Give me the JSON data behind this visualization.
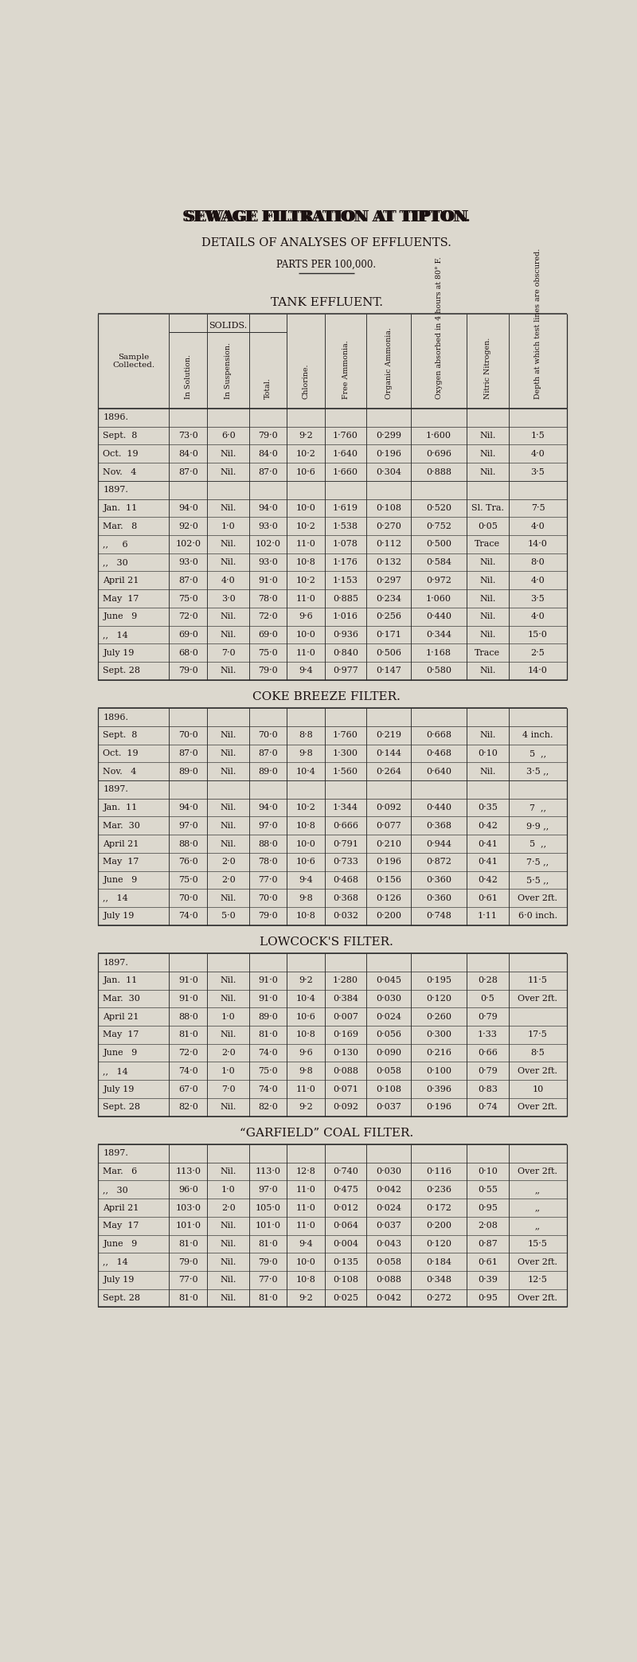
{
  "title1": "SEWAGE FILTRATION AT TIPTON.",
  "title2": "DETAILS OF ANALYSES OF EFFLUENTS.",
  "title3": "PARTS PER 100,000.",
  "bg_color": "#dcd8ce",
  "sections": [
    {
      "title": "TANK EFFLUENT.",
      "has_header": true,
      "year_groups": [
        {
          "year": "1896.",
          "rows": [
            [
              "Sept.  8",
              "73·0",
              "6·0",
              "79·0",
              "9·2",
              "1·760",
              "0·299",
              "1·600",
              "Nil.",
              "1·5"
            ],
            [
              "Oct.  19",
              "84·0",
              "Nil.",
              "84·0",
              "10·2",
              "1·640",
              "0·196",
              "0·696",
              "Nil.",
              "4·0"
            ],
            [
              "Nov.   4",
              "87·0",
              "Nil.",
              "87·0",
              "10·6",
              "1·660",
              "0·304",
              "0·888",
              "Nil.",
              "3·5"
            ]
          ]
        },
        {
          "year": "1897.",
          "rows": [
            [
              "Jan.  11",
              "94·0",
              "Nil.",
              "94·0",
              "10·0",
              "1·619",
              "0·108",
              "0·520",
              "Sl. Tra.",
              "7·5"
            ],
            [
              "Mar.   8",
              "92·0",
              "1·0",
              "93·0",
              "10·2",
              "1·538",
              "0·270",
              "0·752",
              "0·05",
              "4·0"
            ],
            [
              ",,     6",
              "102·0",
              "Nil.",
              "102·0",
              "11·0",
              "1·078",
              "0·112",
              "0·500",
              "Trace",
              "14·0"
            ],
            [
              ",,   30",
              "93·0",
              "Nil.",
              "93·0",
              "10·8",
              "1·176",
              "0·132",
              "0·584",
              "Nil.",
              "8·0"
            ],
            [
              "April 21",
              "87·0",
              "4·0",
              "91·0",
              "10·2",
              "1·153",
              "0·297",
              "0·972",
              "Nil.",
              "4·0"
            ],
            [
              "May  17",
              "75·0",
              "3·0",
              "78·0",
              "11·0",
              "0·885",
              "0·234",
              "1·060",
              "Nil.",
              "3·5"
            ],
            [
              "June   9",
              "72·0",
              "Nil.",
              "72·0",
              "9·6",
              "1·016",
              "0·256",
              "0·440",
              "Nil.",
              "4·0"
            ],
            [
              ",,   14",
              "69·0",
              "Nil.",
              "69·0",
              "10·0",
              "0·936",
              "0·171",
              "0·344",
              "Nil.",
              "15·0"
            ],
            [
              "July 19",
              "68·0",
              "7·0",
              "75·0",
              "11·0",
              "0·840",
              "0·506",
              "1·168",
              "Trace",
              "2·5"
            ],
            [
              "Sept. 28",
              "79·0",
              "Nil.",
              "79·0",
              "9·4",
              "0·977",
              "0·147",
              "0·580",
              "Nil.",
              "14·0"
            ]
          ]
        }
      ]
    },
    {
      "title": "COKE BREEZE FILTER.",
      "has_header": false,
      "year_groups": [
        {
          "year": "1896.",
          "rows": [
            [
              "Sept.  8",
              "70·0",
              "Nil.",
              "70·0",
              "8·8",
              "1·760",
              "0·219",
              "0·668",
              "Nil.",
              "4 inch."
            ],
            [
              "Oct.  19",
              "87·0",
              "Nil.",
              "87·0",
              "9·8",
              "1·300",
              "0·144",
              "0·468",
              "0·10",
              "5  ,,"
            ],
            [
              "Nov.   4",
              "89·0",
              "Nil.",
              "89·0",
              "10·4",
              "1·560",
              "0·264",
              "0·640",
              "Nil.",
              "3·5 ,,"
            ]
          ]
        },
        {
          "year": "1897.",
          "rows": [
            [
              "Jan.  11",
              "94·0",
              "Nil.",
              "94·0",
              "10·2",
              "1·344",
              "0·092",
              "0·440",
              "0·35",
              "7  ,,"
            ],
            [
              "Mar.  30",
              "97·0",
              "Nil.",
              "97·0",
              "10·8",
              "0·666",
              "0·077",
              "0·368",
              "0·42",
              "9·9 ,,"
            ],
            [
              "April 21",
              "88·0",
              "Nil.",
              "88·0",
              "10·0",
              "0·791",
              "0·210",
              "0·944",
              "0·41",
              "5  ,,"
            ],
            [
              "May  17",
              "76·0",
              "2·0",
              "78·0",
              "10·6",
              "0·733",
              "0·196",
              "0·872",
              "0·41",
              "7·5 ,,"
            ],
            [
              "June   9",
              "75·0",
              "2·0",
              "77·0",
              "9·4",
              "0·468",
              "0·156",
              "0·360",
              "0·42",
              "5·5 ,,"
            ],
            [
              ",,   14",
              "70·0",
              "Nil.",
              "70·0",
              "9·8",
              "0·368",
              "0·126",
              "0·360",
              "0·61",
              "Over 2ft."
            ],
            [
              "July 19",
              "74·0",
              "5·0",
              "79·0",
              "10·8",
              "0·032",
              "0·200",
              "0·748",
              "1·11",
              "6·0 inch."
            ]
          ]
        }
      ]
    },
    {
      "title": "LOWCOCK'S FILTER.",
      "has_header": false,
      "year_groups": [
        {
          "year": "1897.",
          "rows": [
            [
              "Jan.  11",
              "91·0",
              "Nil.",
              "91·0",
              "9·2",
              "1·280",
              "0·045",
              "0·195",
              "0·28",
              "11·5"
            ],
            [
              "Mar.  30",
              "91·0",
              "Nil.",
              "91·0",
              "10·4",
              "0·384",
              "0·030",
              "0·120",
              "0·5",
              "Over 2ft."
            ],
            [
              "April 21",
              "88·0",
              "1·0",
              "89·0",
              "10·6",
              "0·007",
              "0·024",
              "0·260",
              "0·79",
              ""
            ],
            [
              "May  17",
              "81·0",
              "Nil.",
              "81·0",
              "10·8",
              "0·169",
              "0·056",
              "0·300",
              "1·33",
              "17·5"
            ],
            [
              "June   9",
              "72·0",
              "2·0",
              "74·0",
              "9·6",
              "0·130",
              "0·090",
              "0·216",
              "0·66",
              "8·5"
            ],
            [
              ",,   14",
              "74·0",
              "1·0",
              "75·0",
              "9·8",
              "0·088",
              "0·058",
              "0·100",
              "0·79",
              "Over 2ft."
            ],
            [
              "July 19",
              "67·0",
              "7·0",
              "74·0",
              "11·0",
              "0·071",
              "0·108",
              "0·396",
              "0·83",
              "10"
            ],
            [
              "Sept. 28",
              "82·0",
              "Nil.",
              "82·0",
              "9·2",
              "0·092",
              "0·037",
              "0·196",
              "0·74",
              "Over 2ft."
            ]
          ]
        }
      ]
    },
    {
      "title": "“GARFIELD” COAL FILTER.",
      "has_header": false,
      "year_groups": [
        {
          "year": "1897.",
          "rows": [
            [
              "Mar.   6",
              "113·0",
              "Nil.",
              "113·0",
              "12·8",
              "0·740",
              "0·030",
              "0·116",
              "0·10",
              "Over 2ft."
            ],
            [
              ",,   30",
              "96·0",
              "1·0",
              "97·0",
              "11·0",
              "0·475",
              "0·042",
              "0·236",
              "0·55",
              ",,"
            ],
            [
              "April 21",
              "103·0",
              "2·0",
              "105·0",
              "11·0",
              "0·012",
              "0·024",
              "0·172",
              "0·95",
              ",,"
            ],
            [
              "May  17",
              "101·0",
              "Nil.",
              "101·0",
              "11·0",
              "0·064",
              "0·037",
              "0·200",
              "2·08",
              ",,"
            ],
            [
              "June   9",
              "81·0",
              "Nil.",
              "81·0",
              "9·4",
              "0·004",
              "0·043",
              "0·120",
              "0·87",
              "15·5"
            ],
            [
              ",,   14",
              "79·0",
              "Nil.",
              "79·0",
              "10·0",
              "0·135",
              "0·058",
              "0·184",
              "0·61",
              "Over 2ft."
            ],
            [
              "July 19",
              "77·0",
              "Nil.",
              "77·0",
              "10·8",
              "0·108",
              "0·088",
              "0·348",
              "0·39",
              "12·5"
            ],
            [
              "Sept. 28",
              "81·0",
              "Nil.",
              "81·0",
              "9·2",
              "0·025",
              "0·042",
              "0·272",
              "0·95",
              "Over 2ft."
            ]
          ]
        }
      ]
    }
  ],
  "col_headers_rotated": [
    "In Solution.",
    "In Suspension.",
    "Total.",
    "Chlorine.",
    "Free Ammonia.",
    "Organic Ammonia.",
    "Oxygen absorbed in 4 hours at 80° F.",
    "Nitric Nitrogen.",
    "Depth at which test lines are obscured."
  ]
}
